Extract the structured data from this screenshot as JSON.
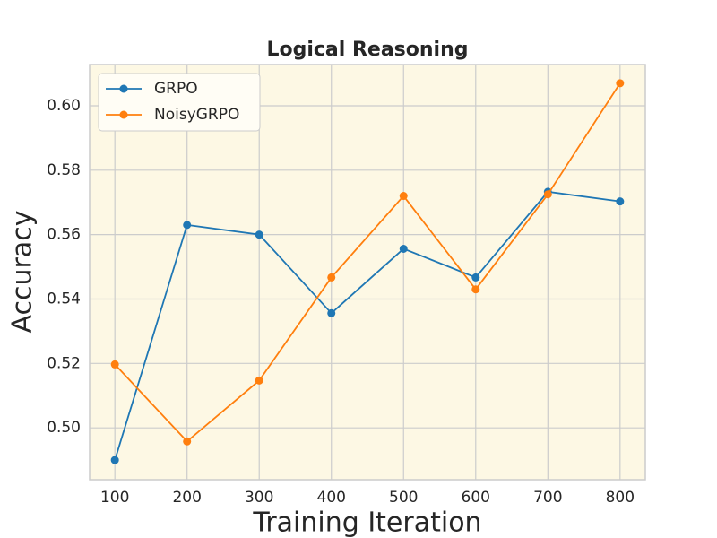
{
  "chart_data": {
    "type": "line",
    "title": "Logical Reasoning",
    "x_label": "Training Iteration",
    "y_label": "Accuracy",
    "x": [
      100,
      200,
      300,
      400,
      500,
      600,
      700,
      800
    ],
    "series": [
      {
        "name": "GRPO",
        "color": "#1f77b4",
        "values": [
          0.49,
          0.563,
          0.56,
          0.5356,
          0.5556,
          0.5467,
          0.5733,
          0.5703
        ]
      },
      {
        "name": "NoisyGRPO",
        "color": "#ff7f0e",
        "values": [
          0.5197,
          0.4958,
          0.5147,
          0.5467,
          0.572,
          0.543,
          0.5725,
          0.607
        ]
      }
    ],
    "xlim": [
      65,
      835
    ],
    "xticks": [
      100,
      200,
      300,
      400,
      500,
      600,
      700,
      800
    ],
    "ylim": [
      0.4839,
      0.6128
    ],
    "yticks": [
      {
        "value": 0.5,
        "label": "0.50"
      },
      0.52,
      0.54,
      0.56,
      0.58,
      {
        "value": 0.6,
        "label": "0.60"
      }
    ],
    "grid": true,
    "legend": "upper left",
    "background": "#fdf8e4"
  }
}
